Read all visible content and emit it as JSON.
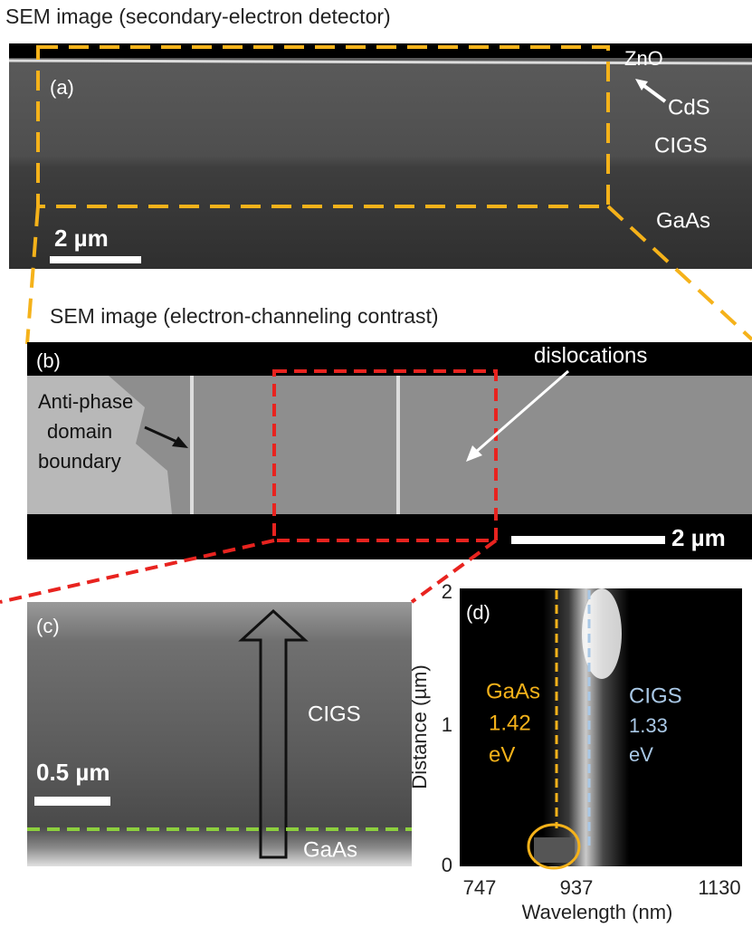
{
  "panel_a": {
    "heading": "SEM image (secondary-electron detector)",
    "label": "(a)",
    "layers": [
      "ZnO",
      "CdS",
      "CIGS",
      "GaAs"
    ],
    "scale_bar": "2 µm"
  },
  "panel_b": {
    "heading": "SEM image (electron-channeling contrast)",
    "label": "(b)",
    "annotations": [
      "dislocations",
      "Anti-phase",
      "domain",
      "boundary"
    ],
    "scale_bar": "2 µm"
  },
  "panel_c": {
    "label": "(c)",
    "layers": [
      "CIGS",
      "GaAs"
    ],
    "scale_bar": "0.5 µm"
  },
  "panel_d": {
    "label": "(d)",
    "x_label": "Wavelength (nm)",
    "y_label": "Distance (µm)",
    "xticks": [
      747,
      937,
      1130
    ],
    "yticks": [
      0,
      1,
      2
    ],
    "gaas": {
      "name": "GaAs",
      "energy": 1.42,
      "unit": "eV"
    },
    "cigs": {
      "name": "CIGS",
      "energy": 1.33,
      "unit": "eV"
    }
  }
}
